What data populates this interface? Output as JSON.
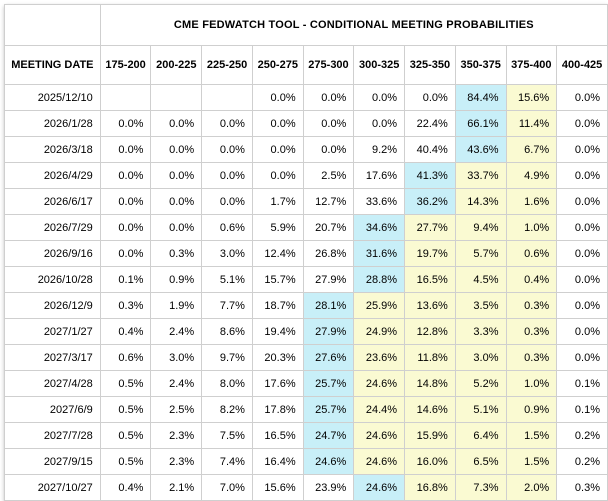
{
  "colors": {
    "highlight_blue": "#c8eff8",
    "highlight_yellow": "#fafad2",
    "border": "#cfcfcf",
    "text": "#000000"
  },
  "chart_data": {
    "type": "table",
    "title": "CME FEDWATCH TOOL - CONDITIONAL MEETING PROBABILITIES",
    "columns": [
      "MEETING DATE",
      "175-200",
      "200-225",
      "225-250",
      "250-275",
      "275-300",
      "300-325",
      "325-350",
      "350-375",
      "375-400",
      "400-425"
    ],
    "highlight_legend": {
      "b": "highest-probability cell (light blue)",
      "y": "cells right of mode (light yellow)",
      "": "no highlight"
    },
    "rows": [
      {
        "date": "2025/12/10",
        "values": [
          "",
          "",
          "",
          "0.0%",
          "0.0%",
          "0.0%",
          "0.0%",
          "84.4%",
          "15.6%",
          "0.0%"
        ],
        "highlights": [
          "",
          "",
          "",
          "",
          "",
          "",
          "",
          "b",
          "y",
          ""
        ]
      },
      {
        "date": "2026/1/28",
        "values": [
          "0.0%",
          "0.0%",
          "0.0%",
          "0.0%",
          "0.0%",
          "0.0%",
          "22.4%",
          "66.1%",
          "11.4%",
          "0.0%"
        ],
        "highlights": [
          "",
          "",
          "",
          "",
          "",
          "",
          "",
          "b",
          "y",
          ""
        ]
      },
      {
        "date": "2026/3/18",
        "values": [
          "0.0%",
          "0.0%",
          "0.0%",
          "0.0%",
          "0.0%",
          "9.2%",
          "40.4%",
          "43.6%",
          "6.7%",
          "0.0%"
        ],
        "highlights": [
          "",
          "",
          "",
          "",
          "",
          "",
          "",
          "b",
          "y",
          ""
        ]
      },
      {
        "date": "2026/4/29",
        "values": [
          "0.0%",
          "0.0%",
          "0.0%",
          "0.0%",
          "2.5%",
          "17.6%",
          "41.3%",
          "33.7%",
          "4.9%",
          "0.0%"
        ],
        "highlights": [
          "",
          "",
          "",
          "",
          "",
          "",
          "b",
          "y",
          "y",
          ""
        ]
      },
      {
        "date": "2026/6/17",
        "values": [
          "0.0%",
          "0.0%",
          "0.0%",
          "1.7%",
          "12.7%",
          "33.6%",
          "36.2%",
          "14.3%",
          "1.6%",
          "0.0%"
        ],
        "highlights": [
          "",
          "",
          "",
          "",
          "",
          "",
          "b",
          "y",
          "y",
          ""
        ]
      },
      {
        "date": "2026/7/29",
        "values": [
          "0.0%",
          "0.0%",
          "0.6%",
          "5.9%",
          "20.7%",
          "34.6%",
          "27.7%",
          "9.4%",
          "1.0%",
          "0.0%"
        ],
        "highlights": [
          "",
          "",
          "",
          "",
          "",
          "b",
          "y",
          "y",
          "y",
          ""
        ]
      },
      {
        "date": "2026/9/16",
        "values": [
          "0.0%",
          "0.3%",
          "3.0%",
          "12.4%",
          "26.8%",
          "31.6%",
          "19.7%",
          "5.7%",
          "0.6%",
          "0.0%"
        ],
        "highlights": [
          "",
          "",
          "",
          "",
          "",
          "b",
          "y",
          "y",
          "y",
          ""
        ]
      },
      {
        "date": "2026/10/28",
        "values": [
          "0.1%",
          "0.9%",
          "5.1%",
          "15.7%",
          "27.9%",
          "28.8%",
          "16.5%",
          "4.5%",
          "0.4%",
          "0.0%"
        ],
        "highlights": [
          "",
          "",
          "",
          "",
          "",
          "b",
          "y",
          "y",
          "y",
          ""
        ]
      },
      {
        "date": "2026/12/9",
        "values": [
          "0.3%",
          "1.9%",
          "7.7%",
          "18.7%",
          "28.1%",
          "25.9%",
          "13.6%",
          "3.5%",
          "0.3%",
          "0.0%"
        ],
        "highlights": [
          "",
          "",
          "",
          "",
          "b",
          "y",
          "y",
          "y",
          "y",
          ""
        ]
      },
      {
        "date": "2027/1/27",
        "values": [
          "0.4%",
          "2.4%",
          "8.6%",
          "19.4%",
          "27.9%",
          "24.9%",
          "12.8%",
          "3.3%",
          "0.3%",
          "0.0%"
        ],
        "highlights": [
          "",
          "",
          "",
          "",
          "b",
          "y",
          "y",
          "y",
          "y",
          ""
        ]
      },
      {
        "date": "2027/3/17",
        "values": [
          "0.6%",
          "3.0%",
          "9.7%",
          "20.3%",
          "27.6%",
          "23.6%",
          "11.8%",
          "3.0%",
          "0.3%",
          "0.0%"
        ],
        "highlights": [
          "",
          "",
          "",
          "",
          "b",
          "y",
          "y",
          "y",
          "y",
          ""
        ]
      },
      {
        "date": "2027/4/28",
        "values": [
          "0.5%",
          "2.4%",
          "8.0%",
          "17.6%",
          "25.7%",
          "24.6%",
          "14.8%",
          "5.2%",
          "1.0%",
          "0.1%"
        ],
        "highlights": [
          "",
          "",
          "",
          "",
          "b",
          "y",
          "y",
          "y",
          "y",
          ""
        ]
      },
      {
        "date": "2027/6/9",
        "values": [
          "0.5%",
          "2.5%",
          "8.2%",
          "17.8%",
          "25.7%",
          "24.4%",
          "14.6%",
          "5.1%",
          "0.9%",
          "0.1%"
        ],
        "highlights": [
          "",
          "",
          "",
          "",
          "b",
          "y",
          "y",
          "y",
          "y",
          ""
        ]
      },
      {
        "date": "2027/7/28",
        "values": [
          "0.5%",
          "2.3%",
          "7.5%",
          "16.5%",
          "24.7%",
          "24.6%",
          "15.9%",
          "6.4%",
          "1.5%",
          "0.2%"
        ],
        "highlights": [
          "",
          "",
          "",
          "",
          "b",
          "y",
          "y",
          "y",
          "y",
          ""
        ]
      },
      {
        "date": "2027/9/15",
        "values": [
          "0.5%",
          "2.3%",
          "7.4%",
          "16.4%",
          "24.6%",
          "24.6%",
          "16.0%",
          "6.5%",
          "1.5%",
          "0.2%"
        ],
        "highlights": [
          "",
          "",
          "",
          "",
          "b",
          "y",
          "y",
          "y",
          "y",
          ""
        ]
      },
      {
        "date": "2027/10/27",
        "values": [
          "0.4%",
          "2.1%",
          "7.0%",
          "15.6%",
          "23.9%",
          "24.6%",
          "16.8%",
          "7.3%",
          "2.0%",
          "0.3%"
        ],
        "highlights": [
          "",
          "",
          "",
          "",
          "",
          "b",
          "y",
          "y",
          "y",
          ""
        ]
      }
    ]
  }
}
